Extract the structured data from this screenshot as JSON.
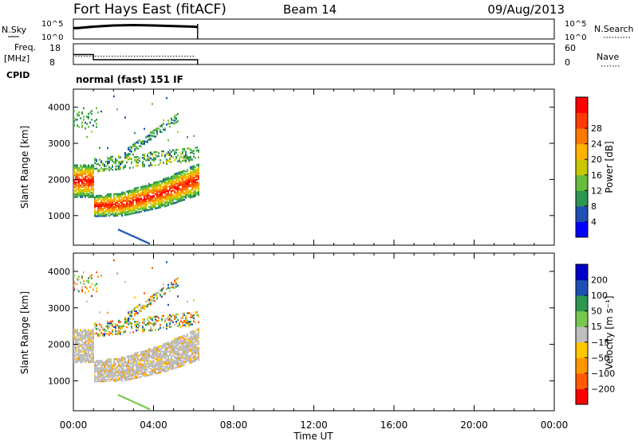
{
  "header": {
    "station": "Fort Hays East (fitACF)",
    "beam": "Beam 14",
    "date": "09/Aug/2013"
  },
  "chart_data": [
    {
      "type": "line",
      "name": "noise-panel",
      "left_label": "N.Sky",
      "right_label": "N.Search",
      "left_ticks": [
        "10^5",
        "10^0"
      ],
      "right_ticks": [
        "10^5",
        "10^0"
      ],
      "x_range_hours": [
        0,
        24
      ],
      "sky_series": {
        "x": [
          0.0,
          0.2,
          1.0,
          2.0,
          3.0,
          4.0,
          5.0,
          6.0,
          6.2
        ],
        "y": [
          0.55,
          0.55,
          0.62,
          0.68,
          0.7,
          0.68,
          0.65,
          0.62,
          0.6
        ]
      },
      "data_end_hour": 6.2
    },
    {
      "type": "line",
      "name": "frequency-panel",
      "left_label": "Freq.",
      "left_unit": "[MHz]",
      "right_label": "Nave",
      "left_ticks": [
        18,
        8
      ],
      "right_ticks": [
        60,
        0
      ],
      "freq_series": {
        "x": [
          0.0,
          1.0,
          1.0,
          6.2
        ],
        "y": [
          12.8,
          12.8,
          10.3,
          10.3
        ]
      },
      "nave_series": {
        "x": [
          0.0,
          6.2
        ],
        "y": [
          24,
          24
        ]
      }
    },
    {
      "type": "text",
      "name": "cpid-panel",
      "label": "CPID",
      "value": "normal (fast) 151 IF"
    },
    {
      "type": "heatmap",
      "name": "power-panel",
      "ylabel": "Slant Range [km]",
      "yticks": [
        1000,
        2000,
        3000,
        4000
      ],
      "ylim": [
        180,
        4500
      ],
      "xlim": [
        0,
        24
      ],
      "colorbar": {
        "label": "Power [dB]",
        "ticks": [
          4,
          8,
          12,
          16,
          20,
          24,
          28
        ],
        "colors": [
          "#0000ff",
          "#1e50b4",
          "#2d9650",
          "#64be3c",
          "#c8c800",
          "#ffb400",
          "#ff7800",
          "#ff3c00",
          "#ff0000"
        ]
      }
    },
    {
      "type": "heatmap",
      "name": "velocity-panel",
      "ylabel": "Slant Range [km]",
      "yticks": [
        1000,
        2000,
        3000,
        4000
      ],
      "ylim": [
        180,
        4500
      ],
      "xlim": [
        0,
        24
      ],
      "xlabel": "Time UT",
      "xticks": [
        "00:00",
        "04:00",
        "08:00",
        "12:00",
        "16:00",
        "20:00",
        "00:00"
      ],
      "colorbar": {
        "label": "Velocity [m s⁻¹]",
        "ticks": [
          "200",
          "100",
          "50",
          "15",
          "−15",
          "−50",
          "−100",
          "−200"
        ],
        "colors": [
          "#0000c8",
          "#1e50b4",
          "#2d9650",
          "#78c850",
          "#bebebe",
          "#ffc800",
          "#ff9600",
          "#ff5a00",
          "#ff0000"
        ]
      }
    }
  ]
}
